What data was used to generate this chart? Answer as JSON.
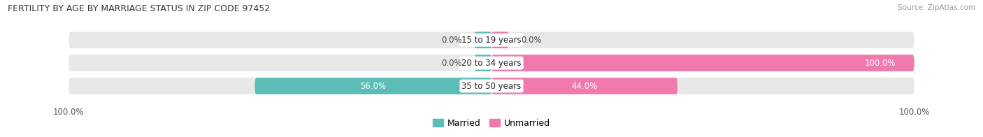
{
  "title": "FERTILITY BY AGE BY MARRIAGE STATUS IN ZIP CODE 97452",
  "source": "Source: ZipAtlas.com",
  "categories": [
    "15 to 19 years",
    "20 to 34 years",
    "35 to 50 years"
  ],
  "married": [
    0.0,
    0.0,
    56.0
  ],
  "unmarried": [
    0.0,
    100.0,
    44.0
  ],
  "married_color": "#5bbcb8",
  "unmarried_color": "#f07aae",
  "bar_bg_color": "#e8e8e8",
  "bar_height": 0.72,
  "title_fontsize": 9.0,
  "label_fontsize": 8.5,
  "cat_fontsize": 8.5,
  "legend_fontsize": 9.0,
  "source_fontsize": 7.5,
  "x_left_label": "100.0%",
  "x_right_label": "100.0%",
  "xlim": [
    -100,
    100
  ]
}
